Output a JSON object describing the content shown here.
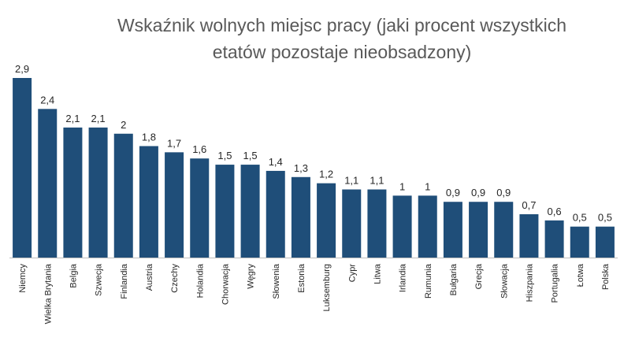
{
  "chart_data": {
    "type": "bar",
    "title_lines": [
      "Wskaźnik wolnych miejsc pracy (jaki procent wszystkich",
      "etatów pozostaje nieobsadzony)"
    ],
    "categories": [
      "Niemcy",
      "Wielka Brytania",
      "Belgia",
      "Szwecja",
      "Finlandia",
      "Austria",
      "Czechy",
      "Holandia",
      "Chorwacja",
      "Węgry",
      "Słowenia",
      "Estonia",
      "Luksemburg",
      "Cypr",
      "Litwa",
      "Irlandia",
      "Rumunia",
      "Bułgaria",
      "Grecja",
      "Słowacja",
      "Hiszpania",
      "Portugalia",
      "Łotwa",
      "Polska"
    ],
    "values": [
      2.9,
      2.4,
      2.1,
      2.1,
      2.0,
      1.8,
      1.7,
      1.6,
      1.5,
      1.5,
      1.4,
      1.3,
      1.2,
      1.1,
      1.1,
      1.0,
      1.0,
      0.9,
      0.9,
      0.9,
      0.7,
      0.6,
      0.5,
      0.5
    ],
    "value_labels": [
      "2,9",
      "2,4",
      "2,1",
      "2,1",
      "2",
      "1,8",
      "1,7",
      "1,6",
      "1,5",
      "1,5",
      "1,4",
      "1,3",
      "1,2",
      "1,1",
      "1,1",
      "1",
      "1",
      "0,9",
      "0,9",
      "0,9",
      "0,7",
      "0,6",
      "0,5",
      "0,5"
    ],
    "ylim": [
      0,
      2.9
    ],
    "grid": false,
    "legend": "none",
    "bar_color": "#1f4e79"
  }
}
